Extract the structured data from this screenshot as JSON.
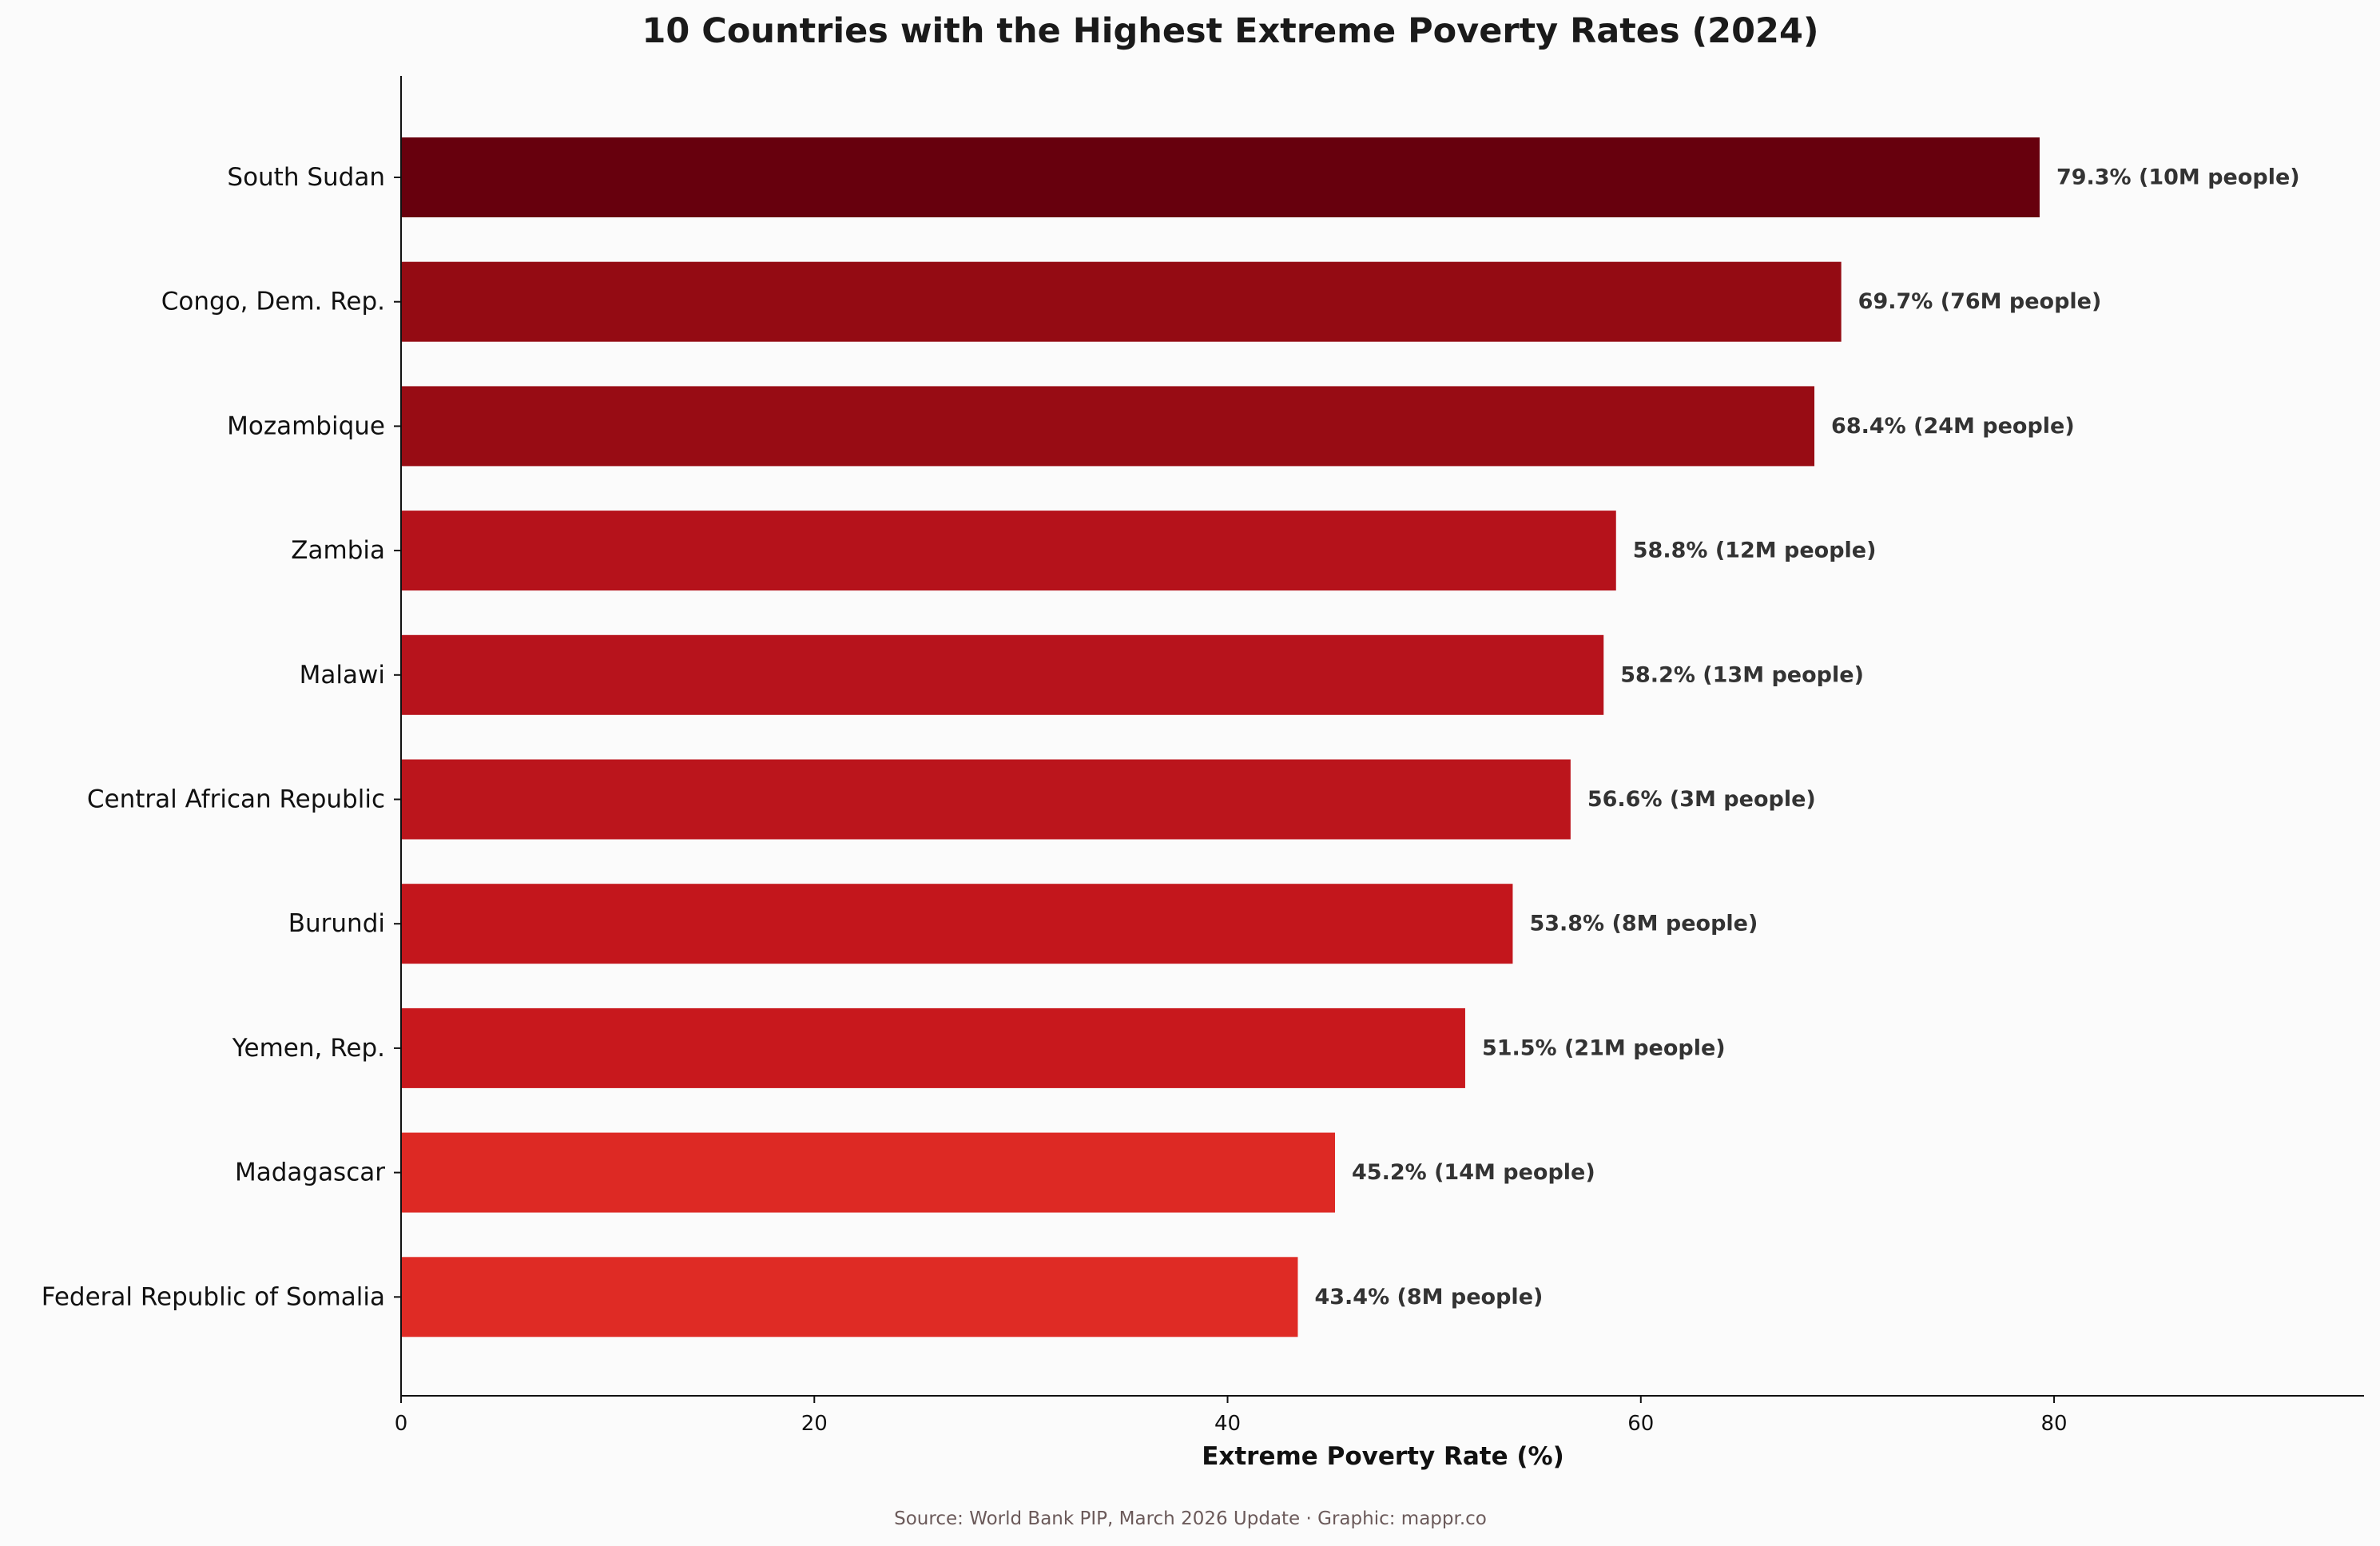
{
  "chart_data": {
    "type": "bar",
    "orientation": "horizontal",
    "title": "10 Countries with the Highest Extreme Poverty Rates (2024)",
    "xlabel": "Extreme Poverty Rate (%)",
    "ylabel": "",
    "xlim": [
      0,
      95
    ],
    "xticks": [
      "0",
      "20",
      "40",
      "60",
      "80"
    ],
    "grid": false,
    "categories": [
      "South Sudan",
      "Congo, Dem. Rep.",
      "Mozambique",
      "Zambia",
      "Malawi",
      "Central African Republic",
      "Burundi",
      "Yemen, Rep.",
      "Madagascar",
      "Federal Republic of Somalia"
    ],
    "values": [
      79.3,
      69.7,
      68.4,
      58.8,
      58.2,
      56.6,
      53.8,
      51.5,
      45.2,
      43.4
    ],
    "data_labels": [
      "79.3%  (10M people)",
      "69.7%  (76M people)",
      "68.4%  (24M people)",
      "58.8%  (12M people)",
      "58.2%  (13M people)",
      "56.6%  (3M people)",
      "53.8%  (8M people)",
      "51.5%  (21M people)",
      "45.2%  (14M people)",
      "43.4%  (8M people)"
    ],
    "colors": [
      "#67000d",
      "#940b13",
      "#980c14",
      "#b5121b",
      "#b7131c",
      "#bb151c",
      "#c3161c",
      "#c8181d",
      "#dd2924",
      "#df2b25"
    ]
  },
  "source_note": "Source: World Bank PIP, March 2026 Update · Graphic: mappr.co"
}
